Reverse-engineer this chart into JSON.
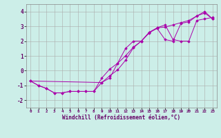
{
  "xlabel": "Windchill (Refroidissement éolien,°C)",
  "bg_color": "#cceee8",
  "line_color": "#aa00aa",
  "grid_color": "#aaaaaa",
  "xlim": [
    -0.5,
    23.5
  ],
  "ylim": [
    -2.5,
    4.5
  ],
  "yticks": [
    -2,
    -1,
    0,
    1,
    2,
    3,
    4
  ],
  "xticks": [
    0,
    1,
    2,
    3,
    4,
    5,
    6,
    7,
    8,
    9,
    10,
    11,
    12,
    13,
    14,
    15,
    16,
    17,
    18,
    19,
    20,
    21,
    22,
    23
  ],
  "line1_x": [
    0,
    1,
    2,
    3,
    4,
    5,
    6,
    7,
    8,
    9,
    10,
    11,
    12,
    13,
    14,
    15,
    16,
    17,
    18,
    19,
    20,
    21,
    22,
    23
  ],
  "line1_y": [
    -0.7,
    -1.0,
    -1.2,
    -1.5,
    -1.5,
    -1.4,
    -1.4,
    -1.4,
    -1.4,
    -0.8,
    -0.35,
    0.05,
    0.7,
    1.55,
    2.0,
    2.6,
    2.85,
    2.1,
    2.0,
    3.2,
    3.3,
    3.7,
    3.9,
    3.5
  ],
  "line2_x": [
    0,
    1,
    2,
    3,
    4,
    5,
    6,
    7,
    8,
    9,
    10,
    11,
    12,
    13,
    14,
    15,
    16,
    17,
    18,
    19,
    20,
    21,
    22,
    23
  ],
  "line2_y": [
    -0.7,
    -1.0,
    -1.2,
    -1.5,
    -1.5,
    -1.4,
    -1.4,
    -1.4,
    -1.4,
    -0.5,
    0.1,
    0.5,
    1.5,
    2.0,
    2.0,
    2.55,
    2.9,
    2.95,
    3.1,
    3.25,
    3.4,
    3.7,
    4.0,
    3.5
  ],
  "line3_x": [
    0,
    9,
    10,
    11,
    12,
    13,
    14,
    15,
    16,
    17,
    18,
    19,
    20,
    21,
    22,
    23
  ],
  "line3_y": [
    -0.7,
    -0.8,
    -0.5,
    0.5,
    1.0,
    1.6,
    2.0,
    2.6,
    2.9,
    3.1,
    2.1,
    2.0,
    2.0,
    3.4,
    3.5,
    3.6
  ],
  "xlabel_color": "#660066",
  "tick_color": "#660066",
  "xlabel_fontsize": 5.5,
  "ytick_fontsize": 5.5,
  "xtick_fontsize": 4.2
}
